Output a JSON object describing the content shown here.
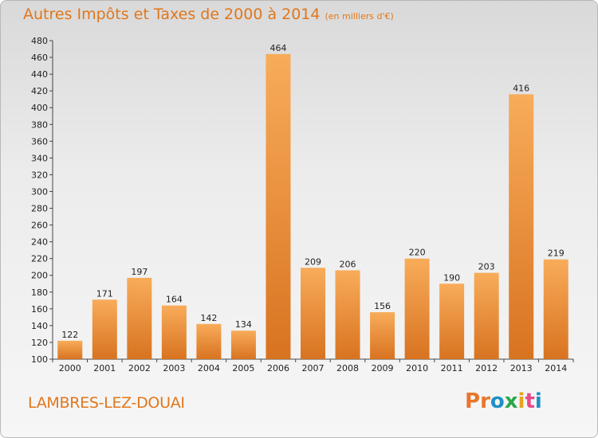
{
  "header": {
    "title": "Autres Impôts et Taxes de 2000 à 2014",
    "subtitle": "(en milliers d'€)"
  },
  "footer": {
    "commune": "LAMBRES-LEZ-DOUAI",
    "logo": "Proxiti"
  },
  "colors": {
    "title": "#e0771c",
    "bar_light": "#f6a654",
    "bar_dark": "#d97420",
    "logo_letters": [
      "#e8762b",
      "#e8762b",
      "#1e90c8",
      "#2aa84a",
      "#e8a21c",
      "#e84a8a",
      "#1e90c8"
    ]
  },
  "chart_data": {
    "type": "bar",
    "categories": [
      "2000",
      "2001",
      "2002",
      "2003",
      "2004",
      "2005",
      "2006",
      "2007",
      "2008",
      "2009",
      "2010",
      "2011",
      "2012",
      "2013",
      "2014"
    ],
    "values": [
      122,
      171,
      197,
      164,
      142,
      134,
      464,
      209,
      206,
      156,
      220,
      190,
      203,
      416,
      219
    ],
    "ylim": [
      100,
      480
    ],
    "yticks": [
      "100",
      "120",
      "140",
      "160",
      "180",
      "200",
      "220",
      "240",
      "260",
      "280",
      "300",
      "320",
      "340",
      "360",
      "380",
      "400",
      "420",
      "440",
      "460",
      "480"
    ],
    "grid": false,
    "legend": "none"
  }
}
